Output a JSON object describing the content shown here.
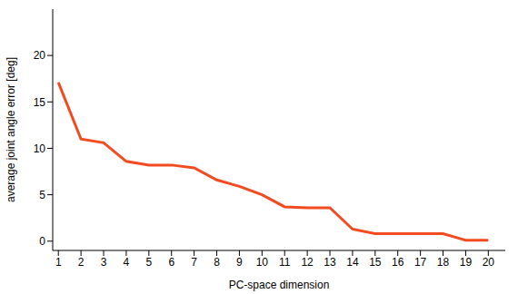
{
  "chart_data": {
    "type": "line",
    "x": [
      1,
      2,
      3,
      4,
      5,
      6,
      7,
      8,
      9,
      10,
      11,
      12,
      13,
      14,
      15,
      16,
      17,
      18,
      19,
      20
    ],
    "values": [
      17.1,
      11.0,
      10.6,
      8.6,
      8.2,
      8.2,
      7.9,
      6.6,
      5.9,
      5.0,
      3.7,
      3.6,
      3.6,
      1.3,
      0.8,
      0.8,
      0.8,
      0.8,
      0.1,
      0.1
    ],
    "color": "#f24b1f",
    "xlabel": "PC-space dimension",
    "ylabel": "average joint angle error [deg]",
    "xlim": [
      0.75,
      20.75
    ],
    "ylim": [
      -1,
      25
    ],
    "xticks": [
      1,
      2,
      3,
      4,
      5,
      6,
      7,
      8,
      9,
      10,
      11,
      12,
      13,
      14,
      15,
      16,
      17,
      18,
      19,
      20
    ],
    "yticks": [
      0,
      5,
      10,
      15,
      20
    ],
    "grid": false
  }
}
